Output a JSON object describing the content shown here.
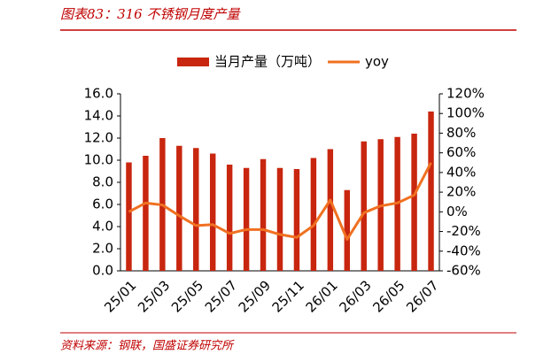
{
  "header": {
    "title": "图表83：316 不锈钢月度产量"
  },
  "source": "资料来源：钢联，国盛证券研究所",
  "chart_data": {
    "type": "bar_line",
    "categories": [
      "25/01",
      null,
      "25/03",
      null,
      "25/05",
      null,
      "25/07",
      null,
      "25/09",
      null,
      "25/11",
      null,
      "26/01",
      null,
      "26/03",
      null,
      "26/05",
      null,
      "26/07"
    ],
    "series": [
      {
        "name": "当月产量（万吨）",
        "color": "#c8260f",
        "type": "bar",
        "values": [
          9.8,
          10.4,
          12.0,
          11.3,
          11.1,
          10.6,
          9.6,
          9.3,
          10.1,
          9.3,
          9.2,
          10.2,
          11.0,
          7.3,
          11.7,
          11.9,
          12.1,
          12.4,
          14.4
        ]
      },
      {
        "name": "yoy",
        "color": "#f07020",
        "type": "line",
        "axis": "y2",
        "values": [
          0,
          9,
          7,
          -4,
          -14,
          -13,
          -22,
          -18,
          -18,
          -23,
          -26,
          -14,
          12,
          -28,
          -1,
          6,
          9,
          17,
          50
        ]
      }
    ],
    "ylim": [
      0,
      16
    ],
    "yticks": [
      {
        "value": 0,
        "label": "0.0"
      },
      {
        "value": 2,
        "label": "2.0"
      },
      {
        "value": 4,
        "label": "4.0"
      },
      {
        "value": 6,
        "label": "6.0"
      },
      {
        "value": 8,
        "label": "8.0"
      },
      {
        "value": 10,
        "label": "10.0"
      },
      {
        "value": 12,
        "label": "12.0"
      },
      {
        "value": 14,
        "label": "14.0"
      },
      {
        "value": 16,
        "label": "16.0"
      }
    ],
    "y2lim": [
      -60,
      120
    ],
    "y2ticks": [
      {
        "value": -60,
        "label": "-60%"
      },
      {
        "value": -40,
        "label": "-40%"
      },
      {
        "value": -20,
        "label": "-20%"
      },
      {
        "value": 0,
        "label": "0%"
      },
      {
        "value": 20,
        "label": "20%"
      },
      {
        "value": 40,
        "label": "40%"
      },
      {
        "value": 60,
        "label": "60%"
      },
      {
        "value": 80,
        "label": "80%"
      },
      {
        "value": 100,
        "label": "100%"
      },
      {
        "value": 120,
        "label": "120%"
      }
    ],
    "grid": false
  }
}
